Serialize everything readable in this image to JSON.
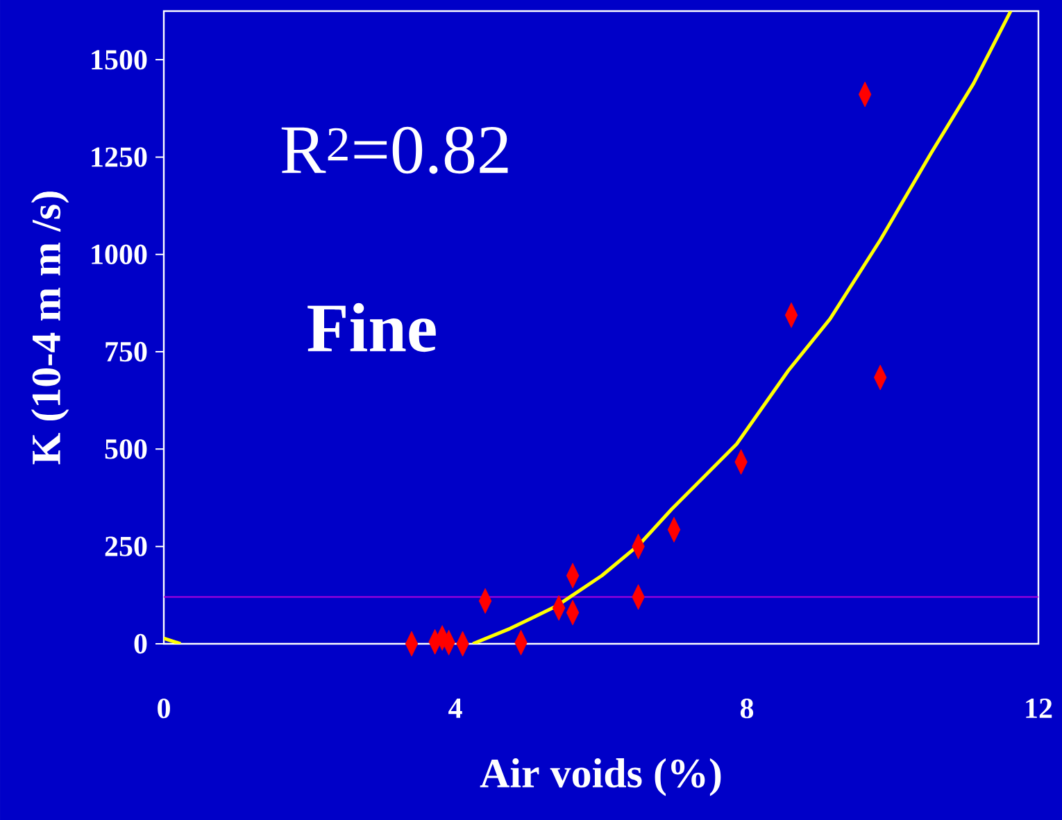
{
  "chart_data": {
    "type": "scatter",
    "xlabel": "Air voids (%)",
    "ylabel": "K (10-4 m m /s)",
    "annotations": [
      "R$^{2}$=0.82",
      "Fine"
    ],
    "xlim": [
      0,
      12
    ],
    "ylim": [
      0,
      1625
    ],
    "xticks": [
      0,
      4,
      8,
      12
    ],
    "yticks": [
      0,
      250,
      500,
      750,
      1000,
      1250,
      1500
    ],
    "marker": "diamond",
    "grid": false,
    "ref_lines": [
      {
        "axis": "y",
        "value": 120,
        "color": "#b000e0"
      }
    ],
    "series": [
      {
        "color": "#ff0000",
        "x": [
          3.4,
          3.72,
          3.82,
          3.91,
          4.1,
          4.41,
          4.9,
          5.42,
          5.61,
          5.61,
          6.51,
          6.51,
          7.0,
          7.92,
          8.61,
          9.62,
          9.83
        ],
        "values": [
          0,
          5,
          15,
          3,
          0,
          110,
          3,
          92,
          175,
          80,
          250,
          120,
          293,
          467,
          844,
          1411,
          684
        ]
      },
      {
        "type": "line",
        "marker": "none",
        "color": "#ffff00",
        "x": [
          0,
          0.23,
          2,
          4.24,
          4.75,
          5.38,
          6.01,
          6.53,
          6.97,
          7.86,
          8.57,
          9.14,
          9.83,
          10.53,
          11.11,
          11.62
        ],
        "values": [
          14,
          0,
          null,
          0,
          39,
          96,
          175,
          256,
          346,
          513,
          702,
          834,
          1037,
          1261,
          1439,
          1625
        ]
      }
    ]
  }
}
